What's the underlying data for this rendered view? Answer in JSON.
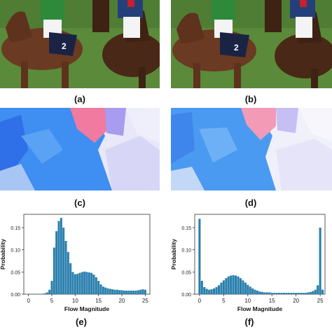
{
  "captions": [
    "(a)",
    "(b)",
    "(c)",
    "(d)",
    "(e)",
    "(f)"
  ],
  "jockey_numbers": {
    "a": "2",
    "b": "2"
  },
  "flow_colors": {
    "grass": "#5a8a3a",
    "horse": "#6b3a22",
    "blue": "#3f8ef2",
    "pink": "#f07aa0",
    "lavender": "#c9c6f4"
  },
  "bar_color": "#2a7fad",
  "chart_data": [
    {
      "type": "bar",
      "title": "",
      "xlabel": "Flow Magnitude",
      "ylabel": "Probability",
      "xlim": [
        -1,
        26
      ],
      "ylim": [
        0,
        0.18
      ],
      "xticks": [
        0,
        5,
        10,
        15,
        20,
        25
      ],
      "yticks": [
        0.0,
        0.05,
        0.1,
        0.15
      ],
      "ytick_labels": [
        "0.00",
        "0.05",
        "0.10",
        "0.15"
      ],
      "x": [
        3.5,
        4,
        4.5,
        5,
        5.5,
        6,
        6.5,
        7,
        7.5,
        8,
        8.5,
        9,
        9.5,
        10,
        10.5,
        11,
        11.5,
        12,
        12.5,
        13,
        13.5,
        14,
        14.5,
        15,
        15.5,
        16,
        16.5,
        17,
        17.5,
        18,
        18.5,
        19,
        19.5,
        20,
        20.5,
        21,
        21.5,
        22,
        22.5,
        23,
        23.5,
        24,
        24.5,
        25
      ],
      "values": [
        0.002,
        0.004,
        0.01,
        0.03,
        0.105,
        0.142,
        0.165,
        0.172,
        0.15,
        0.12,
        0.095,
        0.07,
        0.05,
        0.045,
        0.046,
        0.048,
        0.05,
        0.051,
        0.05,
        0.049,
        0.048,
        0.044,
        0.038,
        0.03,
        0.022,
        0.017,
        0.015,
        0.013,
        0.012,
        0.011,
        0.01,
        0.01,
        0.009,
        0.009,
        0.008,
        0.008,
        0.008,
        0.008,
        0.008,
        0.008,
        0.009,
        0.01,
        0.011,
        0.01
      ]
    },
    {
      "type": "bar",
      "title": "",
      "xlabel": "Flow Magnitude",
      "ylabel": "Probability",
      "xlim": [
        -1,
        26
      ],
      "ylim": [
        0,
        0.18
      ],
      "xticks": [
        0,
        5,
        10,
        15,
        20,
        25
      ],
      "yticks": [
        0.0,
        0.05,
        0.1,
        0.15
      ],
      "ytick_labels": [
        "0.00",
        "0.05",
        "0.10",
        "0.15"
      ],
      "x": [
        0,
        0.5,
        1,
        1.5,
        2,
        2.5,
        3,
        3.5,
        4,
        4.5,
        5,
        5.5,
        6,
        6.5,
        7,
        7.5,
        8,
        8.5,
        9,
        9.5,
        10,
        10.5,
        11,
        11.5,
        12,
        12.5,
        13,
        13.5,
        14,
        14.5,
        15,
        15.5,
        16,
        16.5,
        17,
        17.5,
        18,
        18.5,
        19,
        19.5,
        20,
        20.5,
        21,
        21.5,
        22,
        22.5,
        23,
        23.5,
        24,
        24.5,
        25,
        25.5
      ],
      "values": [
        0.17,
        0.03,
        0.016,
        0.012,
        0.01,
        0.011,
        0.013,
        0.016,
        0.02,
        0.026,
        0.031,
        0.036,
        0.04,
        0.042,
        0.043,
        0.042,
        0.04,
        0.036,
        0.031,
        0.026,
        0.021,
        0.017,
        0.013,
        0.01,
        0.008,
        0.006,
        0.005,
        0.004,
        0.004,
        0.004,
        0.003,
        0.003,
        0.003,
        0.003,
        0.003,
        0.003,
        0.003,
        0.003,
        0.003,
        0.003,
        0.003,
        0.003,
        0.003,
        0.003,
        0.003,
        0.004,
        0.005,
        0.007,
        0.01,
        0.02,
        0.15,
        0.01
      ]
    }
  ]
}
